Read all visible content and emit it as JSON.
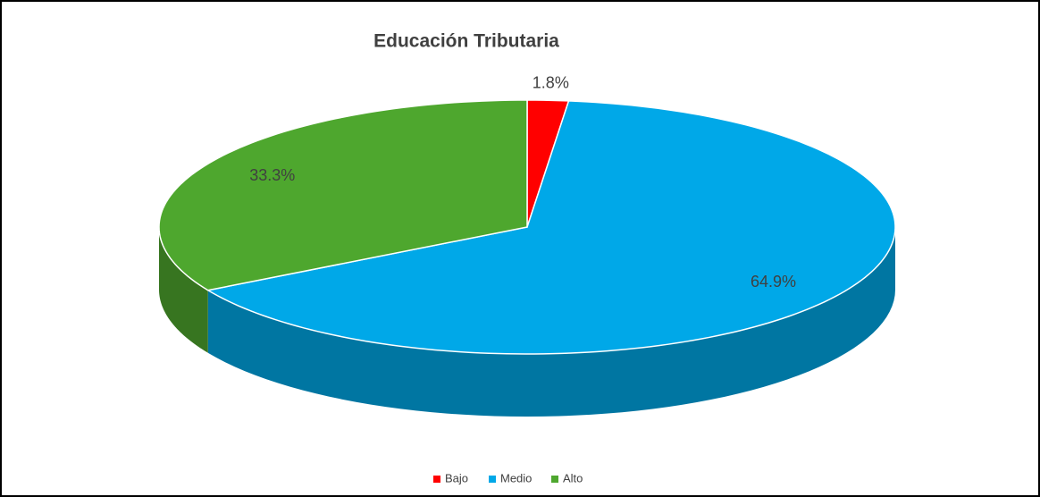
{
  "chart_data": {
    "type": "pie",
    "title": "Educación Tributaria",
    "categories": [
      "Bajo",
      "Medio",
      "Alto"
    ],
    "values": [
      1.8,
      64.9,
      33.3
    ],
    "value_labels": [
      "1.8%",
      "64.9%",
      "33.3%"
    ],
    "colors": [
      "#ff0000",
      "#00a8e8",
      "#4ea72e"
    ],
    "legend": "bottom"
  }
}
